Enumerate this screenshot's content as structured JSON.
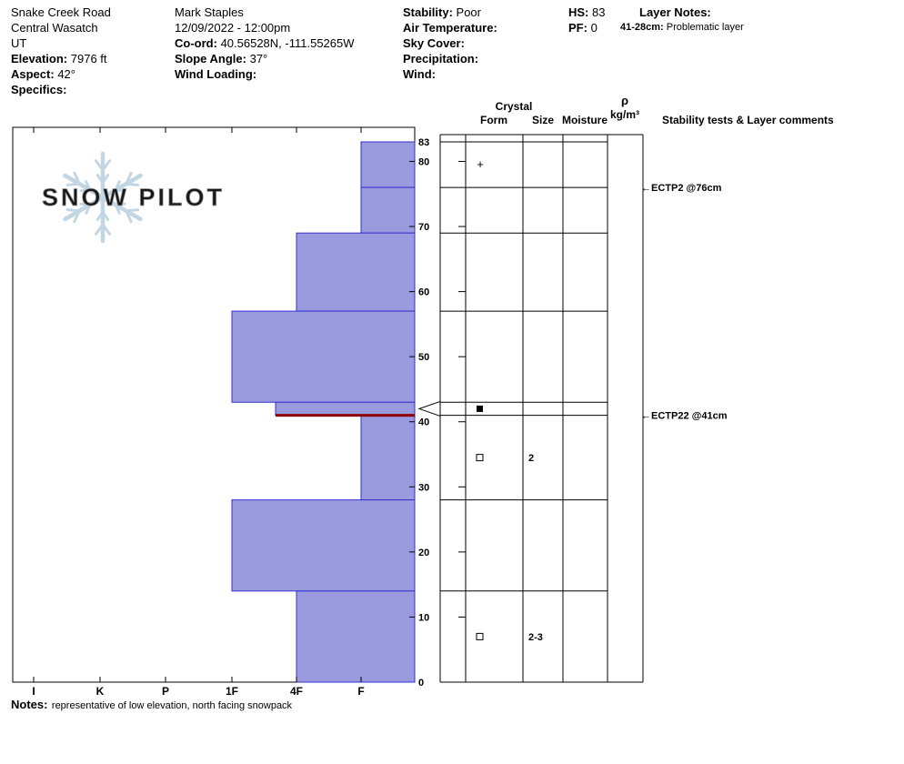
{
  "header": {
    "site": {
      "name": "Snake Creek Road",
      "region": "Central Wasatch",
      "state": "UT",
      "elevation_label": "Elevation:",
      "elevation_value": "7976 ft",
      "aspect_label": "Aspect:",
      "aspect_value": "42°",
      "specifics_label": "Specifics:"
    },
    "observer": {
      "name": "Mark Staples",
      "datetime": "12/09/2022 - 12:00pm",
      "coord_label": "Co-ord:",
      "coord_value": "40.56528N, -111.55265W",
      "slope_angle_label": "Slope Angle:",
      "slope_angle_value": "37°",
      "wind_loading_label": "Wind Loading:"
    },
    "conditions": {
      "stability_label": "Stability:",
      "stability_value": "Poor",
      "air_temperature_label": "Air Temperature:",
      "sky_cover_label": "Sky Cover:",
      "precipitation_label": "Precipitation:",
      "wind_label": "Wind:"
    },
    "totals": {
      "hs_label": "HS:",
      "hs_value": "83",
      "pf_label": "PF:",
      "pf_value": "0"
    },
    "layer_notes": {
      "label": "Layer Notes:",
      "note_key": "41-28cm:",
      "note_text": "Problematic layer"
    }
  },
  "logo": {
    "text": "SNOW PILOT"
  },
  "chart_data": {
    "type": "bar",
    "subtype": "snow-hardness-profile",
    "title": "",
    "hardness_scale": [
      "I",
      "K",
      "P",
      "1F",
      "4F",
      "F"
    ],
    "height_ticks_cm": [
      0,
      10,
      20,
      30,
      40,
      50,
      60,
      70,
      80,
      83
    ],
    "total_depth_cm": 83,
    "layers": [
      {
        "top_cm": 83,
        "bottom_cm": 76,
        "hardness": "F"
      },
      {
        "top_cm": 76,
        "bottom_cm": 69,
        "hardness": "F"
      },
      {
        "top_cm": 69,
        "bottom_cm": 57,
        "hardness": "4F"
      },
      {
        "top_cm": 57,
        "bottom_cm": 43,
        "hardness": "1F"
      },
      {
        "top_cm": 43,
        "bottom_cm": 41,
        "hardness": "1F-4F"
      },
      {
        "top_cm": 41,
        "bottom_cm": 28,
        "hardness": "F"
      },
      {
        "top_cm": 28,
        "bottom_cm": 14,
        "hardness": "1F"
      },
      {
        "top_cm": 14,
        "bottom_cm": 0,
        "hardness": "4F"
      }
    ],
    "problematic_layer_top_cm": 41,
    "tested_layer_marker_cm": 42,
    "grain_annotations": [
      {
        "at_cm": 79.5,
        "symbol": "+",
        "kind": "text",
        "size": ""
      },
      {
        "at_cm": 42,
        "symbol": "■",
        "kind": "square-filled",
        "size": ""
      },
      {
        "at_cm": 34.5,
        "symbol": "□",
        "kind": "square-open",
        "size": "2"
      },
      {
        "at_cm": 7,
        "symbol": "□",
        "kind": "square-open",
        "size": "2-3"
      }
    ],
    "stability_tests": [
      {
        "label": "ECTP2 @76cm",
        "at_cm": 76
      },
      {
        "label": "ECTP22 @41cm",
        "at_cm": 41
      }
    ],
    "panel_headers": {
      "crystal": "Crystal",
      "form": "Form",
      "size": "Size",
      "moisture": "Moisture",
      "density_symbol": "ρ",
      "density_unit": "kg/m³",
      "stability": "Stability tests & Layer comments"
    },
    "colors": {
      "bar_fill": "#9a9ade",
      "bar_stroke": "#3333cc",
      "problem_line": "#8b0000",
      "axis_label": "#10106b",
      "logo_flake": "#bcd2e2",
      "logo_text_fill": "#d8d0bd",
      "logo_text_stroke": "#969696"
    }
  },
  "notes": {
    "label": "Notes:",
    "text": "representative of low elevation, north facing snowpack"
  }
}
